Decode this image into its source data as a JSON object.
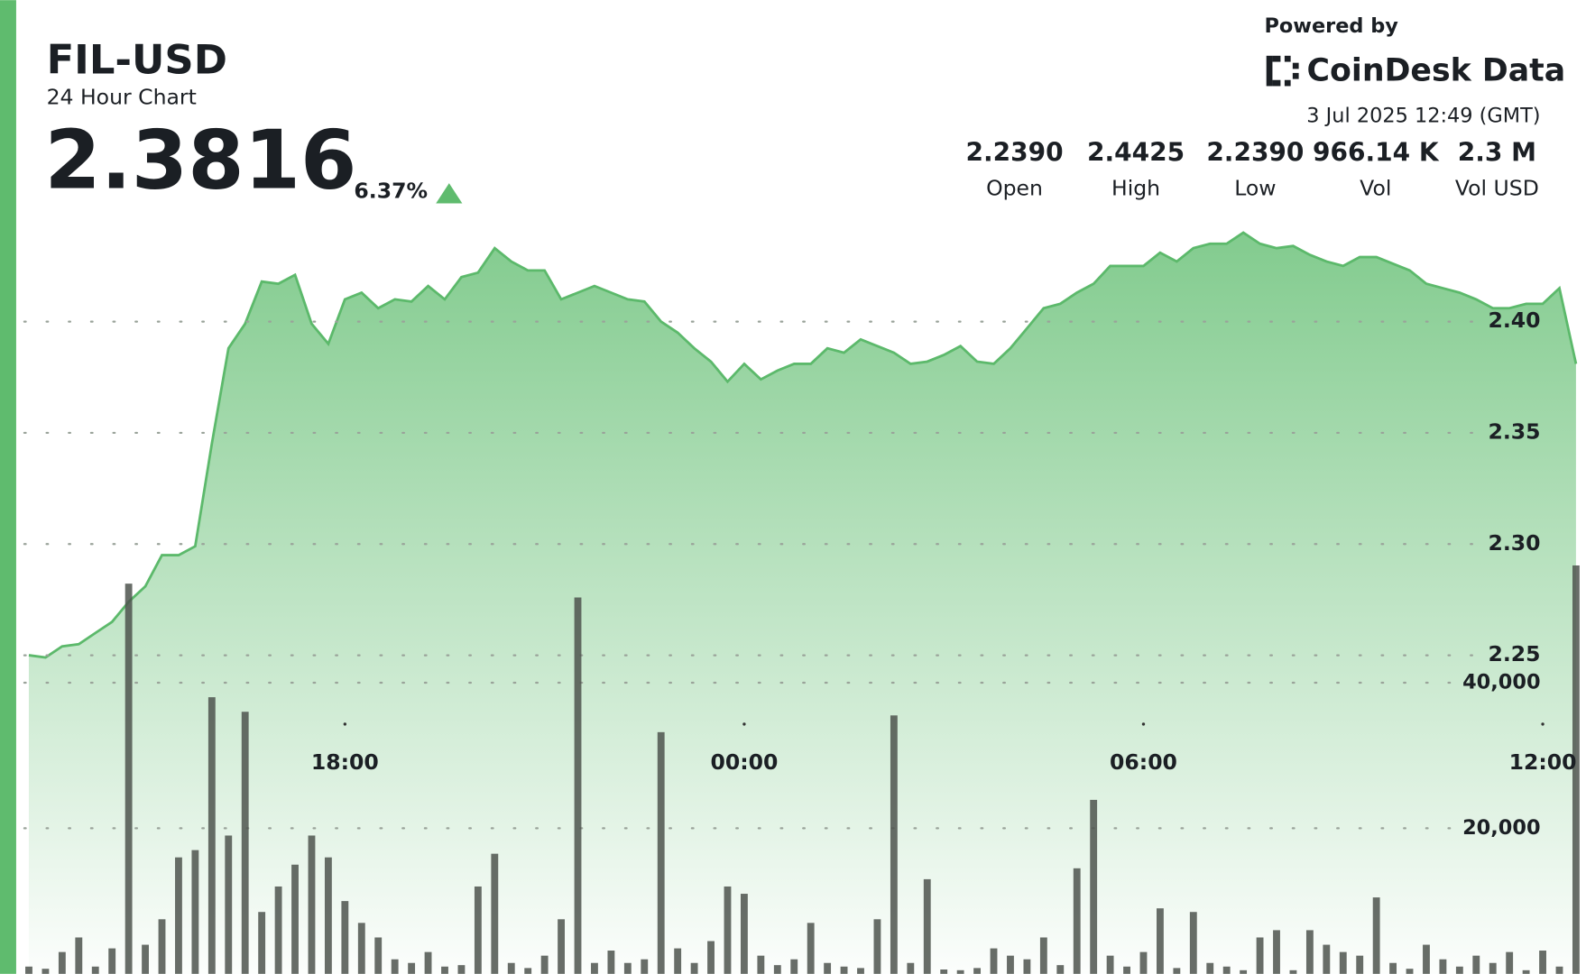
{
  "chart_data": {
    "type": "line",
    "title": "FIL-USD",
    "subtitle": "24 Hour Chart",
    "price": 2.3816,
    "change": "6.37%",
    "powered_by": "Powered by",
    "brand": "CoinDesk Data",
    "timestamp": "3 Jul 2025 12:49 (GMT)",
    "stats": [
      {
        "value": "2.2390",
        "label": "Open"
      },
      {
        "value": "2.4425",
        "label": "High"
      },
      {
        "value": "2.2390",
        "label": "Low"
      },
      {
        "value": "966.14 K",
        "label": "Vol"
      },
      {
        "value": "2.3 M",
        "label": "Vol USD"
      }
    ],
    "x": [
      13.25,
      13.5,
      13.75,
      14,
      14.25,
      14.5,
      14.75,
      15,
      15.25,
      15.5,
      15.75,
      16,
      16.25,
      16.5,
      16.75,
      17,
      17.25,
      17.5,
      17.75,
      18,
      18.25,
      18.5,
      18.75,
      19,
      19.25,
      19.5,
      19.75,
      20,
      20.25,
      20.5,
      20.75,
      21,
      21.25,
      21.5,
      21.75,
      22,
      22.25,
      22.5,
      22.75,
      23,
      23.25,
      23.5,
      23.75,
      24,
      24.25,
      24.5,
      24.75,
      25,
      25.25,
      25.5,
      25.75,
      26,
      26.25,
      26.5,
      26.75,
      27,
      27.25,
      27.5,
      27.75,
      28,
      28.25,
      28.5,
      28.75,
      29,
      29.25,
      29.5,
      29.75,
      30,
      30.25,
      30.5,
      30.75,
      31,
      31.25,
      31.5,
      31.75,
      32,
      32.25,
      32.5,
      32.75,
      33,
      33.25,
      33.5,
      33.75,
      34,
      34.25,
      34.5,
      34.75,
      35,
      35.25,
      35.5,
      35.75,
      36,
      36.25,
      36.5
    ],
    "series": [
      {
        "type": "line",
        "color": "#5cb96b",
        "values": [
          2.25,
          2.249,
          2.254,
          2.255,
          2.26,
          2.265,
          2.274,
          2.281,
          2.295,
          2.295,
          2.299,
          2.345,
          2.388,
          2.399,
          2.418,
          2.417,
          2.421,
          2.399,
          2.39,
          2.41,
          2.413,
          2.406,
          2.41,
          2.409,
          2.416,
          2.41,
          2.42,
          2.422,
          2.433,
          2.427,
          2.423,
          2.423,
          2.41,
          2.413,
          2.416,
          2.413,
          2.41,
          2.409,
          2.4,
          2.395,
          2.388,
          2.382,
          2.373,
          2.381,
          2.374,
          2.378,
          2.381,
          2.381,
          2.388,
          2.386,
          2.392,
          2.389,
          2.386,
          2.381,
          2.382,
          2.385,
          2.389,
          2.382,
          2.381,
          2.388,
          2.397,
          2.406,
          2.408,
          2.413,
          2.417,
          2.425,
          2.425,
          2.425,
          2.431,
          2.427,
          2.433,
          2.435,
          2.435,
          2.44,
          2.435,
          2.433,
          2.434,
          2.43,
          2.427,
          2.425,
          2.429,
          2.429,
          2.426,
          2.423,
          2.417,
          2.415,
          2.413,
          2.41,
          2.406,
          2.406,
          2.408,
          2.408,
          2.415,
          2.381
        ]
      },
      {
        "type": "bar",
        "axis": "y2",
        "color": "#4d544d",
        "values": [
          1000,
          700,
          3000,
          5000,
          1000,
          3500,
          53600,
          4000,
          7500,
          16000,
          17000,
          38000,
          19000,
          36000,
          8500,
          12000,
          15000,
          19000,
          16000,
          10000,
          7000,
          5000,
          2000,
          1500,
          3000,
          1000,
          1200,
          12000,
          16500,
          1500,
          800,
          2500,
          7500,
          51700,
          1500,
          3200,
          1500,
          2000,
          33200,
          3500,
          1500,
          4500,
          12000,
          11000,
          2500,
          1200,
          2000,
          7000,
          1500,
          1000,
          800,
          7500,
          35500,
          1500,
          13000,
          600,
          500,
          800,
          3500,
          2500,
          2000,
          5000,
          1200,
          14500,
          23900,
          2500,
          1000,
          3000,
          9000,
          800,
          8500,
          1500,
          1000,
          500,
          5000,
          6000,
          500,
          6000,
          4000,
          3000,
          2500,
          10500,
          1500,
          700,
          4000,
          2000,
          1000,
          2500,
          1500,
          3000,
          500,
          3200,
          1000,
          56100
        ]
      }
    ],
    "xlim": [
      13.09,
      36.65
    ],
    "xticks": [
      {
        "value": 18,
        "label": "18:00"
      },
      {
        "value": 24,
        "label": "00:00"
      },
      {
        "value": 30,
        "label": "06:00"
      },
      {
        "value": 36,
        "label": "12:00"
      }
    ],
    "ylim": [
      2.1068,
      2.5445
    ],
    "yticks": [
      2.25,
      {
        "value": 2.3,
        "label": "2.30"
      },
      2.35,
      {
        "value": 2.4,
        "label": "2.40"
      }
    ],
    "y2lim": [
      0,
      133750
    ],
    "y2ticks": [
      {
        "value": 20000,
        "label": "20,000"
      },
      {
        "value": 40000,
        "label": "40,000"
      }
    ],
    "grid": true
  }
}
